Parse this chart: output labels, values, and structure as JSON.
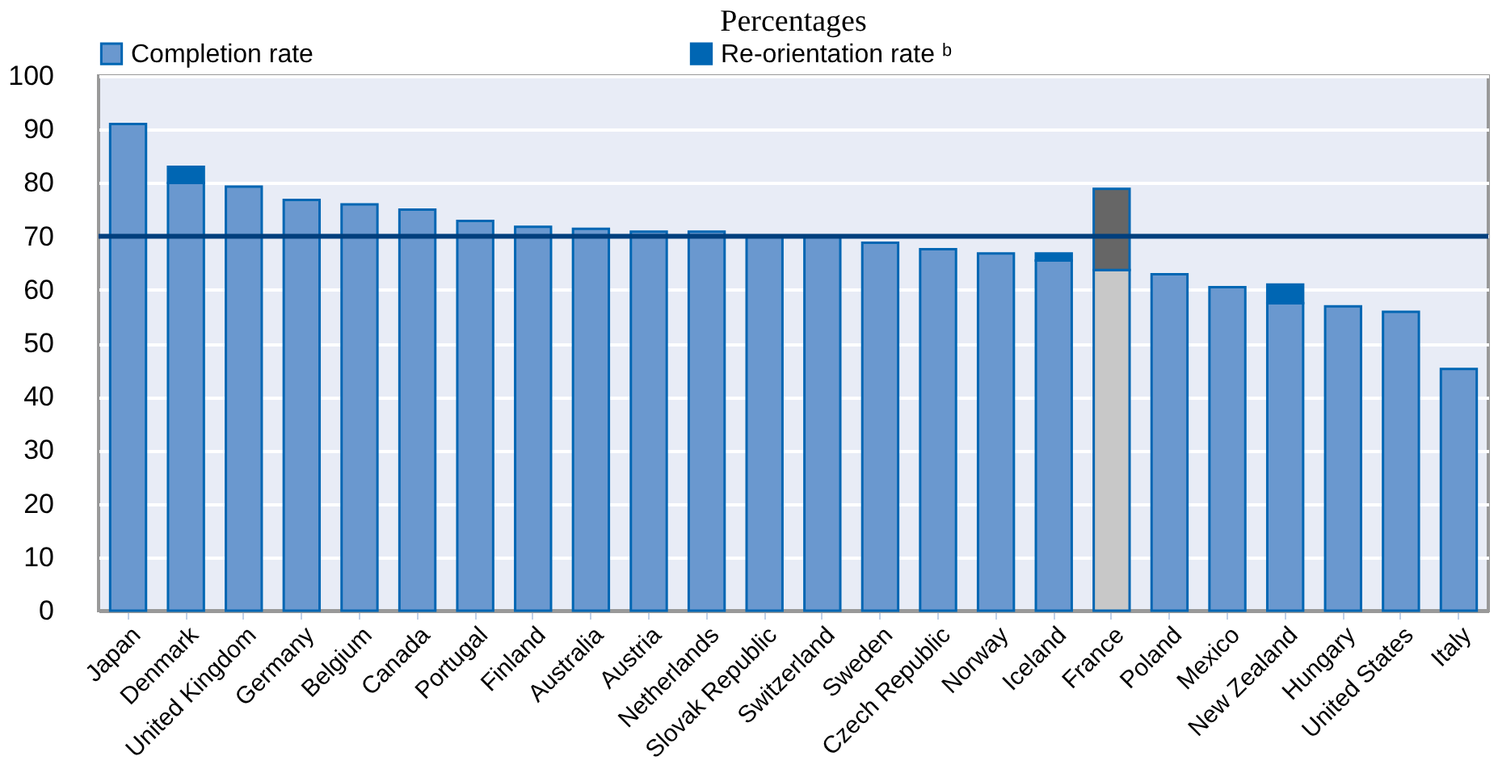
{
  "chart_data": {
    "type": "bar",
    "title": "Percentages",
    "stacked": true,
    "legend": "top",
    "grid": "y",
    "categories": [
      "Japan",
      "Denmark",
      "United Kingdom",
      "Germany",
      "Belgium",
      "Canada",
      "Portugal",
      "Finland",
      "Australia",
      "Austria",
      "Netherlands",
      "Slovak Republic",
      "Switzerland",
      "Sweden",
      "Czech Republic",
      "Norway",
      "Iceland",
      "France",
      "Poland",
      "Mexico",
      "New Zealand",
      "Hungary",
      "United States",
      "Italy"
    ],
    "series": [
      {
        "name": "Completion rate",
        "color": "#6a98cf",
        "colors": [
          "#6a98cf",
          "#6a98cf",
          "#6a98cf",
          "#6a98cf",
          "#6a98cf",
          "#6a98cf",
          "#6a98cf",
          "#6a98cf",
          "#6a98cf",
          "#6a98cf",
          "#6a98cf",
          "#6a98cf",
          "#6a98cf",
          "#6a98cf",
          "#6a98cf",
          "#6a98cf",
          "#6a98cf",
          "#c8c8c8",
          "#6a98cf",
          "#6a98cf",
          "#6a98cf",
          "#6a98cf",
          "#6a98cf",
          "#6a98cf"
        ],
        "values": [
          91,
          80,
          79.3,
          76.8,
          76,
          75,
          72.9,
          71.8,
          71.4,
          70.9,
          70.9,
          70,
          70,
          68.8,
          67.6,
          66.8,
          65.5,
          63.7,
          62.9,
          60.5,
          57.5,
          56.9,
          55.9,
          45.2
        ]
      },
      {
        "name": "Re-orientation rate ᵇ",
        "color": "#0066b3",
        "colors": [
          "#0066b3",
          "#0066b3",
          "#0066b3",
          "#0066b3",
          "#0066b3",
          "#0066b3",
          "#0066b3",
          "#0066b3",
          "#0066b3",
          "#0066b3",
          "#0066b3",
          "#0066b3",
          "#0066b3",
          "#0066b3",
          "#0066b3",
          "#0066b3",
          "#0066b3",
          "#666666",
          "#0066b3",
          "#0066b3",
          "#0066b3",
          "#0066b3",
          "#0066b3",
          "#0066b3"
        ],
        "values": [
          null,
          3,
          null,
          null,
          null,
          null,
          null,
          null,
          null,
          null,
          null,
          null,
          null,
          null,
          null,
          null,
          1.3,
          15.2,
          null,
          null,
          3.5,
          null,
          null,
          null
        ]
      }
    ],
    "ylim": [
      0,
      100
    ],
    "yticks": [
      0,
      10,
      20,
      30,
      40,
      50,
      60,
      70,
      80,
      90,
      100
    ],
    "ref_lines": [
      {
        "axis": "y",
        "value": 70,
        "color": "#003f7d"
      }
    ]
  }
}
